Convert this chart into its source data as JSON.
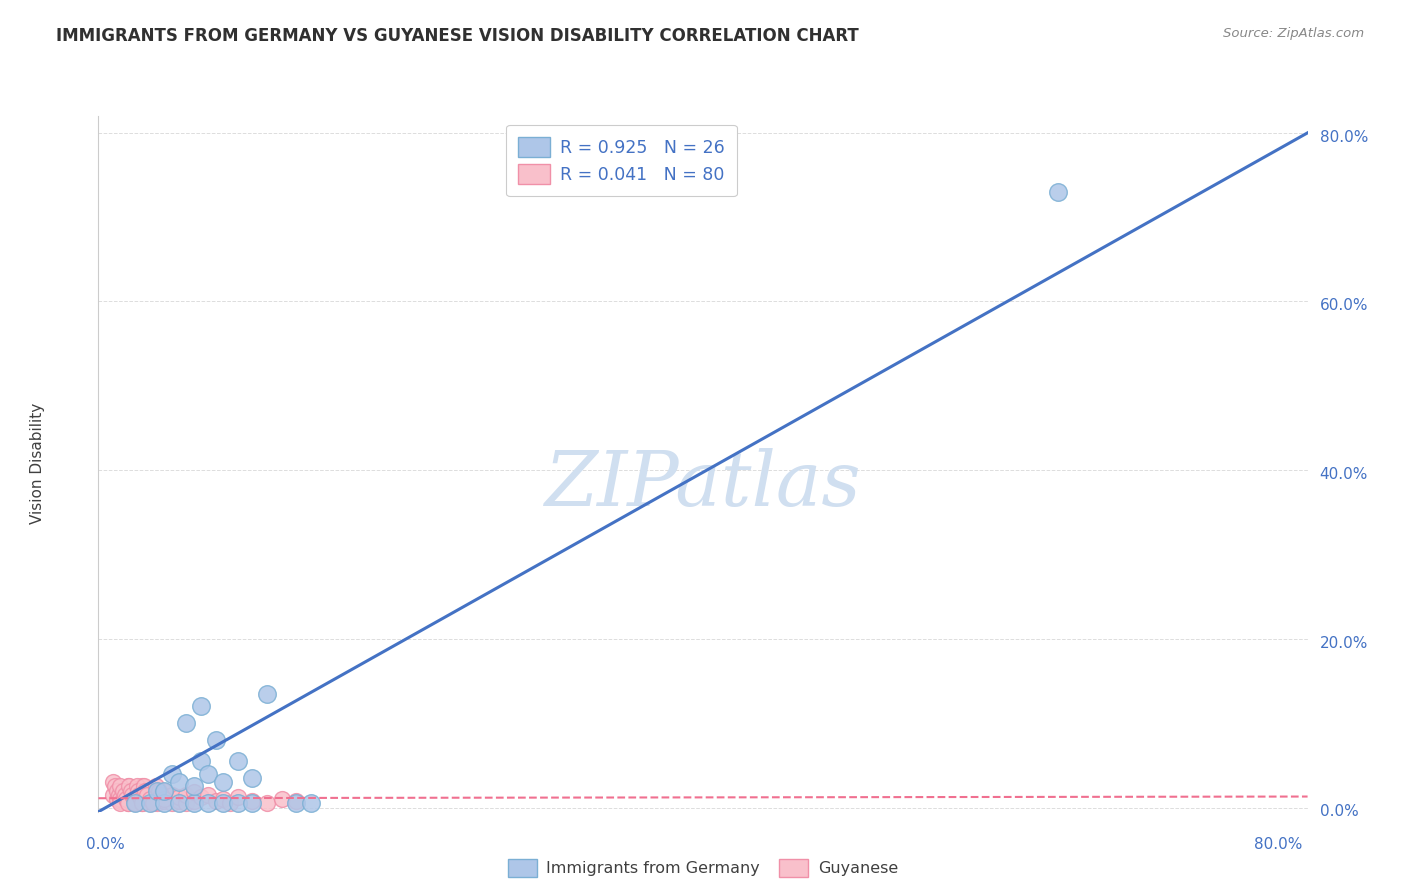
{
  "title": "IMMIGRANTS FROM GERMANY VS GUYANESE VISION DISABILITY CORRELATION CHART",
  "source": "Source: ZipAtlas.com",
  "ylabel": "Vision Disability",
  "ytick_labels": [
    "0.0%",
    "20.0%",
    "40.0%",
    "60.0%",
    "80.0%"
  ],
  "ytick_values": [
    0.0,
    0.2,
    0.4,
    0.6,
    0.8
  ],
  "xtick_labels": [
    "0.0%",
    "",
    "",
    "",
    "80.0%"
  ],
  "xtick_values": [
    0.0,
    0.2,
    0.4,
    0.6,
    0.8
  ],
  "xlim": [
    -0.005,
    0.82
  ],
  "ylim": [
    -0.005,
    0.82
  ],
  "legend_r_blue": "R = 0.925",
  "legend_n_blue": "N = 26",
  "legend_r_pink": "R = 0.041",
  "legend_n_pink": "N = 80",
  "legend_label_blue": "Immigrants from Germany",
  "legend_label_pink": "Guyanese",
  "blue_face_color": "#AEC6E8",
  "blue_edge_color": "#7BAFD4",
  "pink_face_color": "#F9C0CB",
  "pink_edge_color": "#F090A8",
  "blue_line_color": "#4472C4",
  "pink_line_color": "#F07090",
  "text_color_blue": "#4472C4",
  "text_color_dark": "#404040",
  "watermark_color": "#D0DFF0",
  "grid_color": "#DDDDDD",
  "blue_scatter_x": [
    0.02,
    0.03,
    0.035,
    0.04,
    0.04,
    0.045,
    0.05,
    0.05,
    0.055,
    0.06,
    0.06,
    0.065,
    0.065,
    0.07,
    0.07,
    0.075,
    0.08,
    0.08,
    0.09,
    0.09,
    0.1,
    0.1,
    0.11,
    0.13,
    0.14,
    0.65
  ],
  "blue_scatter_y": [
    0.005,
    0.005,
    0.02,
    0.005,
    0.02,
    0.04,
    0.005,
    0.03,
    0.1,
    0.005,
    0.025,
    0.12,
    0.055,
    0.005,
    0.04,
    0.08,
    0.005,
    0.03,
    0.005,
    0.055,
    0.005,
    0.035,
    0.135,
    0.005,
    0.005,
    0.73
  ],
  "pink_scatter_x": [
    0.005,
    0.008,
    0.01,
    0.01,
    0.012,
    0.012,
    0.015,
    0.015,
    0.015,
    0.015,
    0.015,
    0.018,
    0.018,
    0.02,
    0.02,
    0.02,
    0.022,
    0.022,
    0.025,
    0.025,
    0.025,
    0.025,
    0.025,
    0.03,
    0.03,
    0.03,
    0.035,
    0.035,
    0.035,
    0.04,
    0.04,
    0.04,
    0.045,
    0.045,
    0.05,
    0.05,
    0.055,
    0.055,
    0.06,
    0.06,
    0.065,
    0.07,
    0.075,
    0.08,
    0.085,
    0.09,
    0.1,
    0.11,
    0.12,
    0.13,
    0.005,
    0.006,
    0.008,
    0.009,
    0.01,
    0.01,
    0.01,
    0.012,
    0.013,
    0.014,
    0.015,
    0.016,
    0.017,
    0.018,
    0.019,
    0.02,
    0.021,
    0.022,
    0.023,
    0.024,
    0.025,
    0.026,
    0.027,
    0.028,
    0.03,
    0.032,
    0.034,
    0.036,
    0.038,
    0.04
  ],
  "pink_scatter_y": [
    0.015,
    0.01,
    0.015,
    0.008,
    0.012,
    0.02,
    0.01,
    0.015,
    0.005,
    0.025,
    0.008,
    0.012,
    0.018,
    0.01,
    0.015,
    0.02,
    0.008,
    0.012,
    0.005,
    0.01,
    0.015,
    0.02,
    0.025,
    0.008,
    0.012,
    0.018,
    0.005,
    0.01,
    0.015,
    0.008,
    0.012,
    0.02,
    0.005,
    0.015,
    0.008,
    0.012,
    0.005,
    0.015,
    0.008,
    0.018,
    0.012,
    0.015,
    0.008,
    0.01,
    0.005,
    0.012,
    0.008,
    0.005,
    0.01,
    0.008,
    0.03,
    0.025,
    0.02,
    0.015,
    0.01,
    0.005,
    0.025,
    0.02,
    0.015,
    0.01,
    0.005,
    0.025,
    0.02,
    0.015,
    0.01,
    0.005,
    0.025,
    0.02,
    0.015,
    0.01,
    0.005,
    0.025,
    0.02,
    0.015,
    0.01,
    0.005,
    0.025,
    0.02,
    0.015,
    0.01
  ],
  "blue_line_x": [
    -0.005,
    0.82
  ],
  "blue_line_y": [
    -0.005,
    0.8
  ],
  "pink_line_x": [
    -0.005,
    0.82
  ],
  "pink_line_y": [
    0.011,
    0.013
  ],
  "watermark": "ZIPatlas",
  "watermark_fontsize": 55
}
